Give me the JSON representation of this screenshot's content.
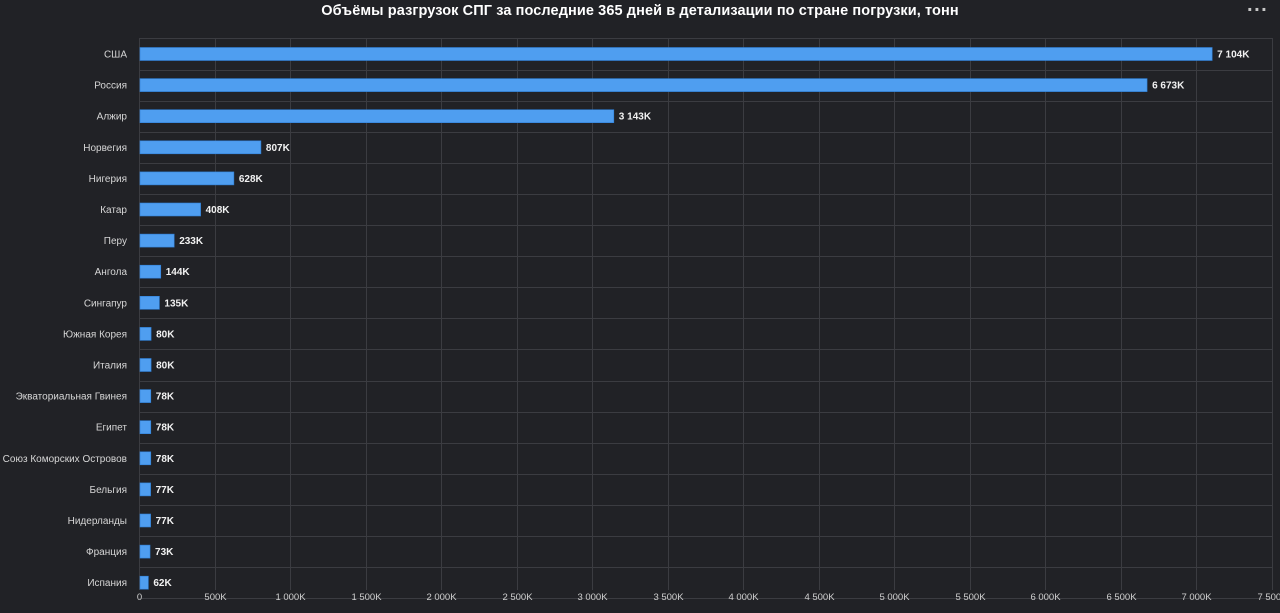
{
  "header": {
    "title": "Объёмы разгрузок СПГ за последние 365 дней в детализации по стране погрузки, тонн",
    "menu_icon": "ellipsis-icon",
    "menu_glyph": "···"
  },
  "colors": {
    "background": "#212226",
    "bar": "#4f9ef0",
    "bar_border": "#2f7fd6",
    "grid": "#3b3c41"
  },
  "chart_data": {
    "type": "bar",
    "orientation": "horizontal",
    "title": "Объёмы разгрузок СПГ за последние 365 дней в детализации по стране погрузки, тонн",
    "categories": [
      "США",
      "Россия",
      "Алжир",
      "Норвегия",
      "Нигерия",
      "Катар",
      "Перу",
      "Ангола",
      "Сингапур",
      "Южная Корея",
      "Италия",
      "Экваториальная Гвинея",
      "Египет",
      "Союз Коморских Островов",
      "Бельгия",
      "Нидерланды",
      "Франция",
      "Испания"
    ],
    "values": [
      7104,
      6673,
      3143,
      807,
      628,
      408,
      233,
      144,
      135,
      80,
      80,
      78,
      78,
      78,
      77,
      77,
      73,
      62
    ],
    "value_labels": [
      "7 104K",
      "6 673K",
      "3 143K",
      "807K",
      "628K",
      "408K",
      "233K",
      "144K",
      "135K",
      "80K",
      "80K",
      "78K",
      "78K",
      "78K",
      "77K",
      "77K",
      "73K",
      "62K"
    ],
    "xlim": [
      0,
      7500
    ],
    "xticks": [
      0,
      500,
      1000,
      1500,
      2000,
      2500,
      3000,
      3500,
      4000,
      4500,
      5000,
      5500,
      6000,
      6500,
      7000,
      7500
    ],
    "xtick_labels": [
      "0",
      "500K",
      "1 000K",
      "1 500K",
      "2 000K",
      "2 500K",
      "3 000K",
      "3 500K",
      "4 000K",
      "4 500K",
      "5 000K",
      "5 500K",
      "6 000K",
      "6 500K",
      "7 000K",
      "7 500K"
    ],
    "grid": true,
    "legend": "none"
  }
}
